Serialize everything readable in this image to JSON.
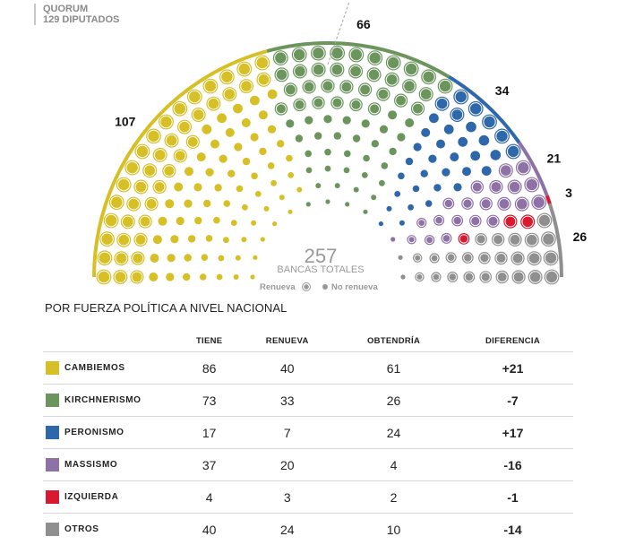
{
  "quorum": {
    "line1": "QUORUM",
    "line2": "129 DIPUTADOS"
  },
  "center": {
    "total": "257",
    "label": "BANCAS TOTALES",
    "legend_renew": "Renueva",
    "legend_norenew": "No renueva"
  },
  "section_title": "POR FUERZA POLÍTICA A NIVEL NACIONAL",
  "table": {
    "headers": [
      "TIENE",
      "RENUEVA",
      "OBTENDRÍA",
      "DIFERENCIA"
    ],
    "rows": [
      {
        "name": "CAMBIEMOS",
        "color": "#d7bf26",
        "tiene": "86",
        "renueva": "40",
        "obtendria": "61",
        "diferencia": "+21"
      },
      {
        "name": "KIRCHNERISMO",
        "color": "#6b955d",
        "tiene": "73",
        "renueva": "33",
        "obtendria": "26",
        "diferencia": "-7"
      },
      {
        "name": "PERONISMO",
        "color": "#2e67aa",
        "tiene": "17",
        "renueva": "7",
        "obtendria": "24",
        "diferencia": "+17"
      },
      {
        "name": "MASSISMO",
        "color": "#8e72a6",
        "tiene": "37",
        "renueva": "20",
        "obtendria": "4",
        "diferencia": "-16"
      },
      {
        "name": "IZQUIERDA",
        "color": "#d8192f",
        "tiene": "4",
        "renueva": "3",
        "obtendria": "2",
        "diferencia": "-1"
      },
      {
        "name": "OTROS",
        "color": "#8f8f8f",
        "tiene": "40",
        "renueva": "24",
        "obtendria": "10",
        "diferencia": "-14"
      }
    ]
  },
  "chart_data": {
    "type": "parliament",
    "total_seats": 257,
    "quorum": 129,
    "series": [
      {
        "name": "CAMBIEMOS",
        "color": "#d7bf26",
        "seats": 107,
        "renueva": 40
      },
      {
        "name": "KIRCHNERISMO",
        "color": "#6b955d",
        "seats": 66,
        "renueva": 33
      },
      {
        "name": "PERONISMO",
        "color": "#2e67aa",
        "seats": 34,
        "renueva": 7
      },
      {
        "name": "MASSISMO",
        "color": "#8e72a6",
        "seats": 21,
        "renueva": 20
      },
      {
        "name": "IZQUIERDA",
        "color": "#d8192f",
        "seats": 3,
        "renueva": 3
      },
      {
        "name": "OTROS",
        "color": "#8f8f8f",
        "seats": 26,
        "renueva": 24
      }
    ]
  }
}
